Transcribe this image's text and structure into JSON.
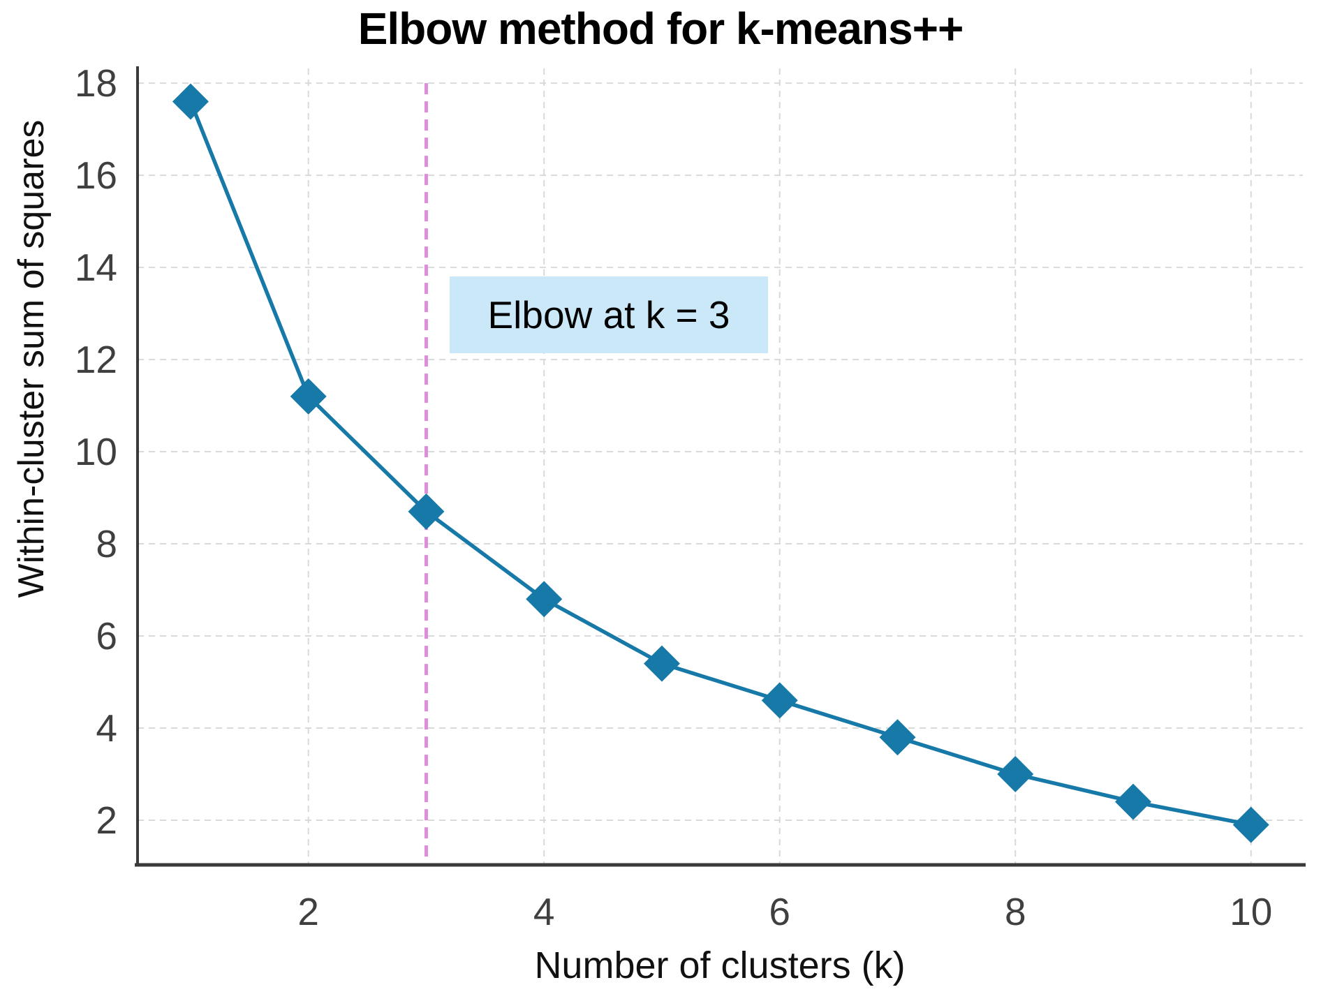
{
  "chart_data": {
    "type": "line",
    "title": "Elbow method for k-means++",
    "xlabel": "Number of clusters (k)",
    "ylabel": "Within-cluster sum of squares",
    "series": [
      {
        "name": "within-cluster-sum-of-squares",
        "x": [
          1,
          2,
          3,
          4,
          5,
          6,
          7,
          8,
          9,
          10
        ],
        "values": [
          17.6,
          11.2,
          8.7,
          6.8,
          5.4,
          4.6,
          3.8,
          3.0,
          2.4,
          1.9
        ]
      }
    ],
    "x_ticks": [
      2,
      4,
      6,
      8,
      10
    ],
    "y_ticks": [
      2,
      4,
      6,
      8,
      10,
      12,
      14,
      16,
      18
    ],
    "xlim": [
      0.55,
      10.44
    ],
    "ylim": [
      1.03,
      18.32
    ],
    "grid": true,
    "grid_style": "dashed",
    "legend": "none",
    "marker": "diamond",
    "vline": {
      "x": 3,
      "y_top": 18,
      "style": "dashed"
    },
    "annotation": {
      "text": "Elbow at k = 3",
      "x": 3.2,
      "y": 13.0
    },
    "colors": {
      "line": "#1779a8",
      "marker": "#1779a8",
      "vline": "#de8ed8",
      "annotation_bg": "#cae8f7",
      "annotation_text": "#000000",
      "grid": "#d9d9d9",
      "spine": "#3a3a3a",
      "tick_label": "#3f3f3f",
      "title_text": "#000000"
    }
  }
}
